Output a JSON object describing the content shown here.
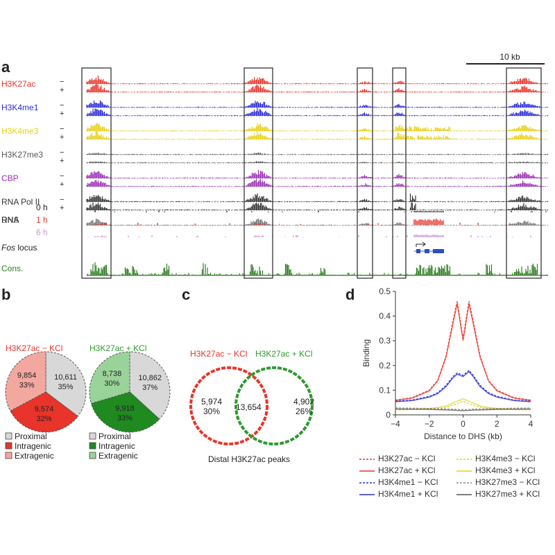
{
  "panel_labels": {
    "a": "a",
    "b": "b",
    "c": "c",
    "d": "d"
  },
  "panel_a": {
    "scale_bar_label": "10 kb",
    "tracks": [
      {
        "name": "H3K27ac",
        "color": "#e8342a",
        "signs": [
          "−",
          "+"
        ]
      },
      {
        "name": "H3K4me1",
        "color": "#2b2bd6",
        "signs": [
          "−",
          "+"
        ]
      },
      {
        "name": "H3K4me3",
        "color": "#e6cf1a",
        "signs": [
          "−",
          "+"
        ]
      },
      {
        "name": "H3K27me3",
        "color": "#555555",
        "signs": [
          "−",
          "+"
        ]
      },
      {
        "name": "CBP",
        "color": "#9b2fb5",
        "signs": [
          "−",
          "+"
        ]
      },
      {
        "name": "RNA Pol II",
        "color": "#333333",
        "signs": [
          "−",
          "+"
        ]
      },
      {
        "name": "DHS",
        "color": "#777777",
        "signs": []
      }
    ],
    "rna": {
      "label": "RNA",
      "timepoints": [
        {
          "label": "0 h",
          "color": "#222222"
        },
        {
          "label": "1 h",
          "color": "#e8342a"
        },
        {
          "label": "6 h",
          "color": "#c79ad6"
        }
      ]
    },
    "locus_label_italic": "Fos",
    "locus_label_rest": " locus",
    "cons_label": "Cons.",
    "cons_color": "#2e7d22"
  },
  "panel_b": {
    "pies": [
      {
        "title": "H3K27ac − KCl",
        "title_color": "#e8342a",
        "slices": [
          {
            "label": "10,611\n35%",
            "count": 10611,
            "percent": 35,
            "color": "#d8d8d8"
          },
          {
            "label": "9,574\n32%",
            "count": 9574,
            "percent": 32,
            "color": "#e8342a"
          },
          {
            "label": "9,854\n33%",
            "count": 9854,
            "percent": 33,
            "color": "#f2a79f"
          }
        ],
        "legend": [
          {
            "label": "Proximal",
            "color": "#d8d8d8"
          },
          {
            "label": "Intragenic",
            "color": "#e8342a"
          },
          {
            "label": "Extragenic",
            "color": "#f2a79f"
          }
        ]
      },
      {
        "title": "H3K27ac + KCl",
        "title_color": "#2e9a2e",
        "slices": [
          {
            "label": "10,862\n37%",
            "count": 10862,
            "percent": 37,
            "color": "#d8d8d8"
          },
          {
            "label": "9,918\n33%",
            "count": 9918,
            "percent": 33,
            "color": "#1f8a1f"
          },
          {
            "label": "8,738\n30%",
            "count": 8738,
            "percent": 30,
            "color": "#9ad39a"
          }
        ],
        "legend": [
          {
            "label": "Proximal",
            "color": "#d8d8d8"
          },
          {
            "label": "Intragenic",
            "color": "#1f8a1f"
          },
          {
            "label": "Extragenic",
            "color": "#9ad39a"
          }
        ]
      }
    ]
  },
  "panel_c": {
    "left_title": "H3K27ac − KCl",
    "right_title": "H3K27ac + KCl",
    "left_only": "5,974\n30%",
    "overlap": "13,654",
    "right_only": "4,902\n26%",
    "caption": "Distal H3K27ac peaks",
    "left_color": "#e8342a",
    "right_color": "#2e9a2e"
  },
  "chart_data": {
    "type": "line",
    "title": "",
    "xlabel": "Distance to DHS (kb)",
    "ylabel": "Binding",
    "xlim": [
      -4,
      4
    ],
    "ylim": [
      0,
      0.5
    ],
    "xticks": [
      -4,
      -2,
      0,
      2,
      4
    ],
    "yticks": [
      0,
      0.1,
      0.2,
      0.3,
      0.4,
      0.5
    ],
    "x": [
      -4,
      -3,
      -2,
      -1.5,
      -1,
      -0.6,
      -0.35,
      0,
      0.35,
      0.6,
      1,
      1.5,
      2,
      3,
      4
    ],
    "series": [
      {
        "name": "H3K27ac − KCl",
        "color": "#e8342a",
        "dash": true,
        "values": [
          0.06,
          0.07,
          0.1,
          0.14,
          0.24,
          0.38,
          0.46,
          0.31,
          0.46,
          0.38,
          0.24,
          0.14,
          0.1,
          0.07,
          0.06
        ]
      },
      {
        "name": "H3K27ac + KCl",
        "color": "#e8342a",
        "dash": false,
        "values": [
          0.058,
          0.068,
          0.097,
          0.137,
          0.235,
          0.37,
          0.45,
          0.3,
          0.45,
          0.37,
          0.235,
          0.137,
          0.097,
          0.068,
          0.058
        ]
      },
      {
        "name": "H3K4me1 − KCl",
        "color": "#2b2bd6",
        "dash": true,
        "values": [
          0.055,
          0.06,
          0.075,
          0.09,
          0.12,
          0.155,
          0.17,
          0.16,
          0.18,
          0.16,
          0.12,
          0.09,
          0.075,
          0.06,
          0.055
        ]
      },
      {
        "name": "H3K4me1 + KCl",
        "color": "#2b2bd6",
        "dash": false,
        "values": [
          0.053,
          0.058,
          0.072,
          0.086,
          0.115,
          0.15,
          0.165,
          0.155,
          0.175,
          0.155,
          0.115,
          0.086,
          0.072,
          0.058,
          0.053
        ]
      },
      {
        "name": "H3K4me3 − KCl",
        "color": "#e6cf1a",
        "dash": true,
        "values": [
          0.02,
          0.021,
          0.023,
          0.026,
          0.03,
          0.04,
          0.045,
          0.055,
          0.045,
          0.04,
          0.03,
          0.026,
          0.023,
          0.021,
          0.02
        ]
      },
      {
        "name": "H3K4me3 + KCl",
        "color": "#e6cf1a",
        "dash": false,
        "values": [
          0.022,
          0.023,
          0.026,
          0.03,
          0.036,
          0.048,
          0.055,
          0.065,
          0.055,
          0.048,
          0.036,
          0.03,
          0.026,
          0.023,
          0.022
        ]
      },
      {
        "name": "H3K27me3 − KCl",
        "color": "#888888",
        "dash": true,
        "values": [
          0.028,
          0.027,
          0.026,
          0.025,
          0.024,
          0.023,
          0.022,
          0.021,
          0.022,
          0.023,
          0.024,
          0.025,
          0.026,
          0.027,
          0.028
        ]
      },
      {
        "name": "H3K27me3 + KCl",
        "color": "#555555",
        "dash": false,
        "values": [
          0.024,
          0.023,
          0.022,
          0.021,
          0.02,
          0.019,
          0.018,
          0.017,
          0.018,
          0.019,
          0.02,
          0.021,
          0.022,
          0.023,
          0.024
        ]
      }
    ],
    "legend": "bottom"
  }
}
